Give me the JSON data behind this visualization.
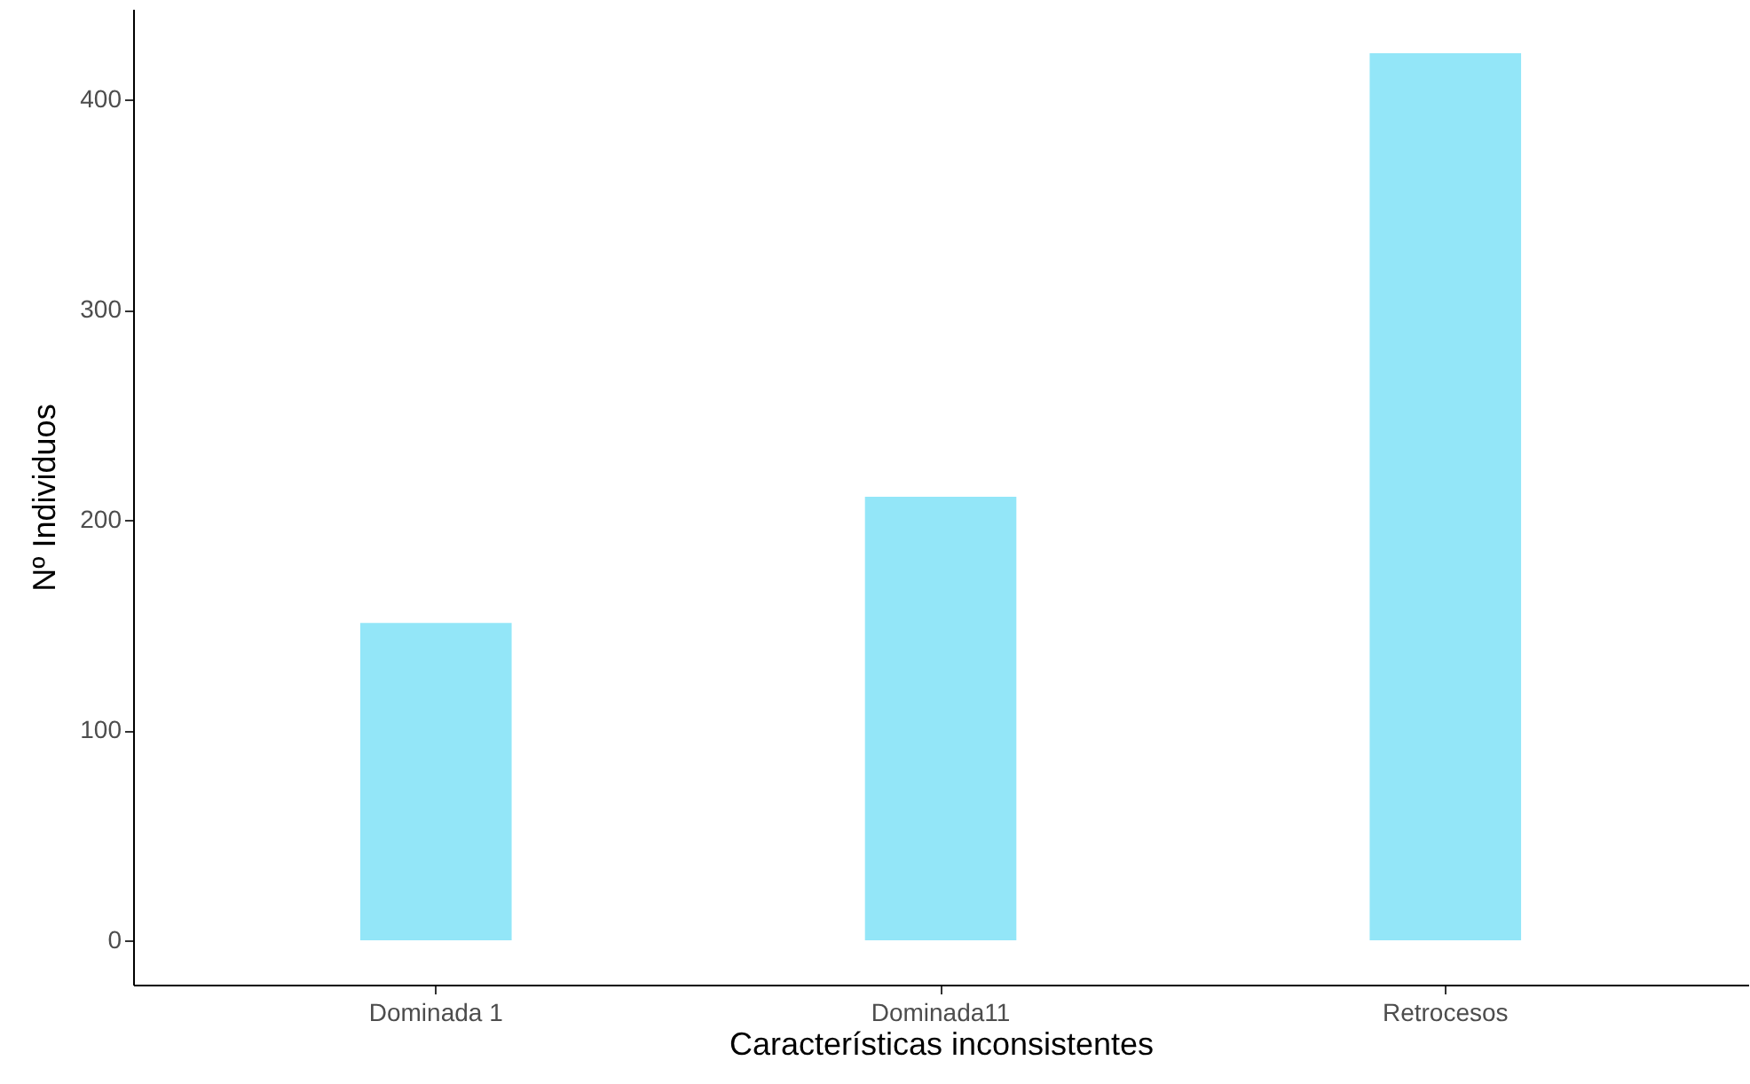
{
  "chart_data": {
    "type": "bar",
    "xlabel": "Características inconsistentes",
    "ylabel": "Nº Individuos",
    "categories": [
      "Dominada 1",
      "Dominada11",
      "Retrocesos"
    ],
    "values": [
      151,
      211,
      422
    ],
    "color": "#93e6f8",
    "ylim": [
      -21.1,
      443.1
    ],
    "yticks": [
      0,
      100,
      200,
      300,
      400
    ],
    "grid": false
  }
}
